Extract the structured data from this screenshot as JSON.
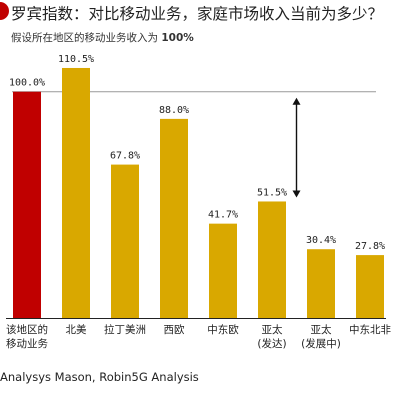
{
  "header": {
    "title": "罗宾指数：对比移动业务，家庭市场收入当前为多少？",
    "subtitle_prefix": "假设所在地区的移动业务收入为 ",
    "subtitle_value": "100%"
  },
  "source": "Analysys Mason, Robin5G Analysis",
  "colors": {
    "accent": "#c00000",
    "bar": "#d9a800",
    "reference_line": "#999999",
    "arrow": "#111111"
  },
  "chart_data": {
    "type": "bar",
    "categories": [
      [
        "该地区的",
        "移动业务"
      ],
      [
        "北美"
      ],
      [
        "拉丁美洲"
      ],
      [
        "西欧"
      ],
      [
        "中东欧"
      ],
      [
        "亚太",
        "(发达)"
      ],
      [
        "亚太",
        "(发展中)"
      ],
      [
        "中东北非"
      ]
    ],
    "values": [
      100.0,
      110.5,
      67.8,
      88.0,
      41.7,
      51.5,
      30.4,
      27.8
    ],
    "value_labels": [
      "100.0%",
      "110.5%",
      "67.8%",
      "88.0%",
      "41.7%",
      "51.5%",
      "30.4%",
      "27.8%"
    ],
    "bar_colors": [
      "#c00000",
      "#d9a800",
      "#d9a800",
      "#d9a800",
      "#d9a800",
      "#d9a800",
      "#d9a800",
      "#d9a800"
    ],
    "reference_line": 100,
    "gap_arrow": {
      "category_index": 5,
      "from": 51.5,
      "to": 100
    },
    "ylim": [
      0,
      118
    ],
    "grid": false,
    "legend": "none"
  }
}
